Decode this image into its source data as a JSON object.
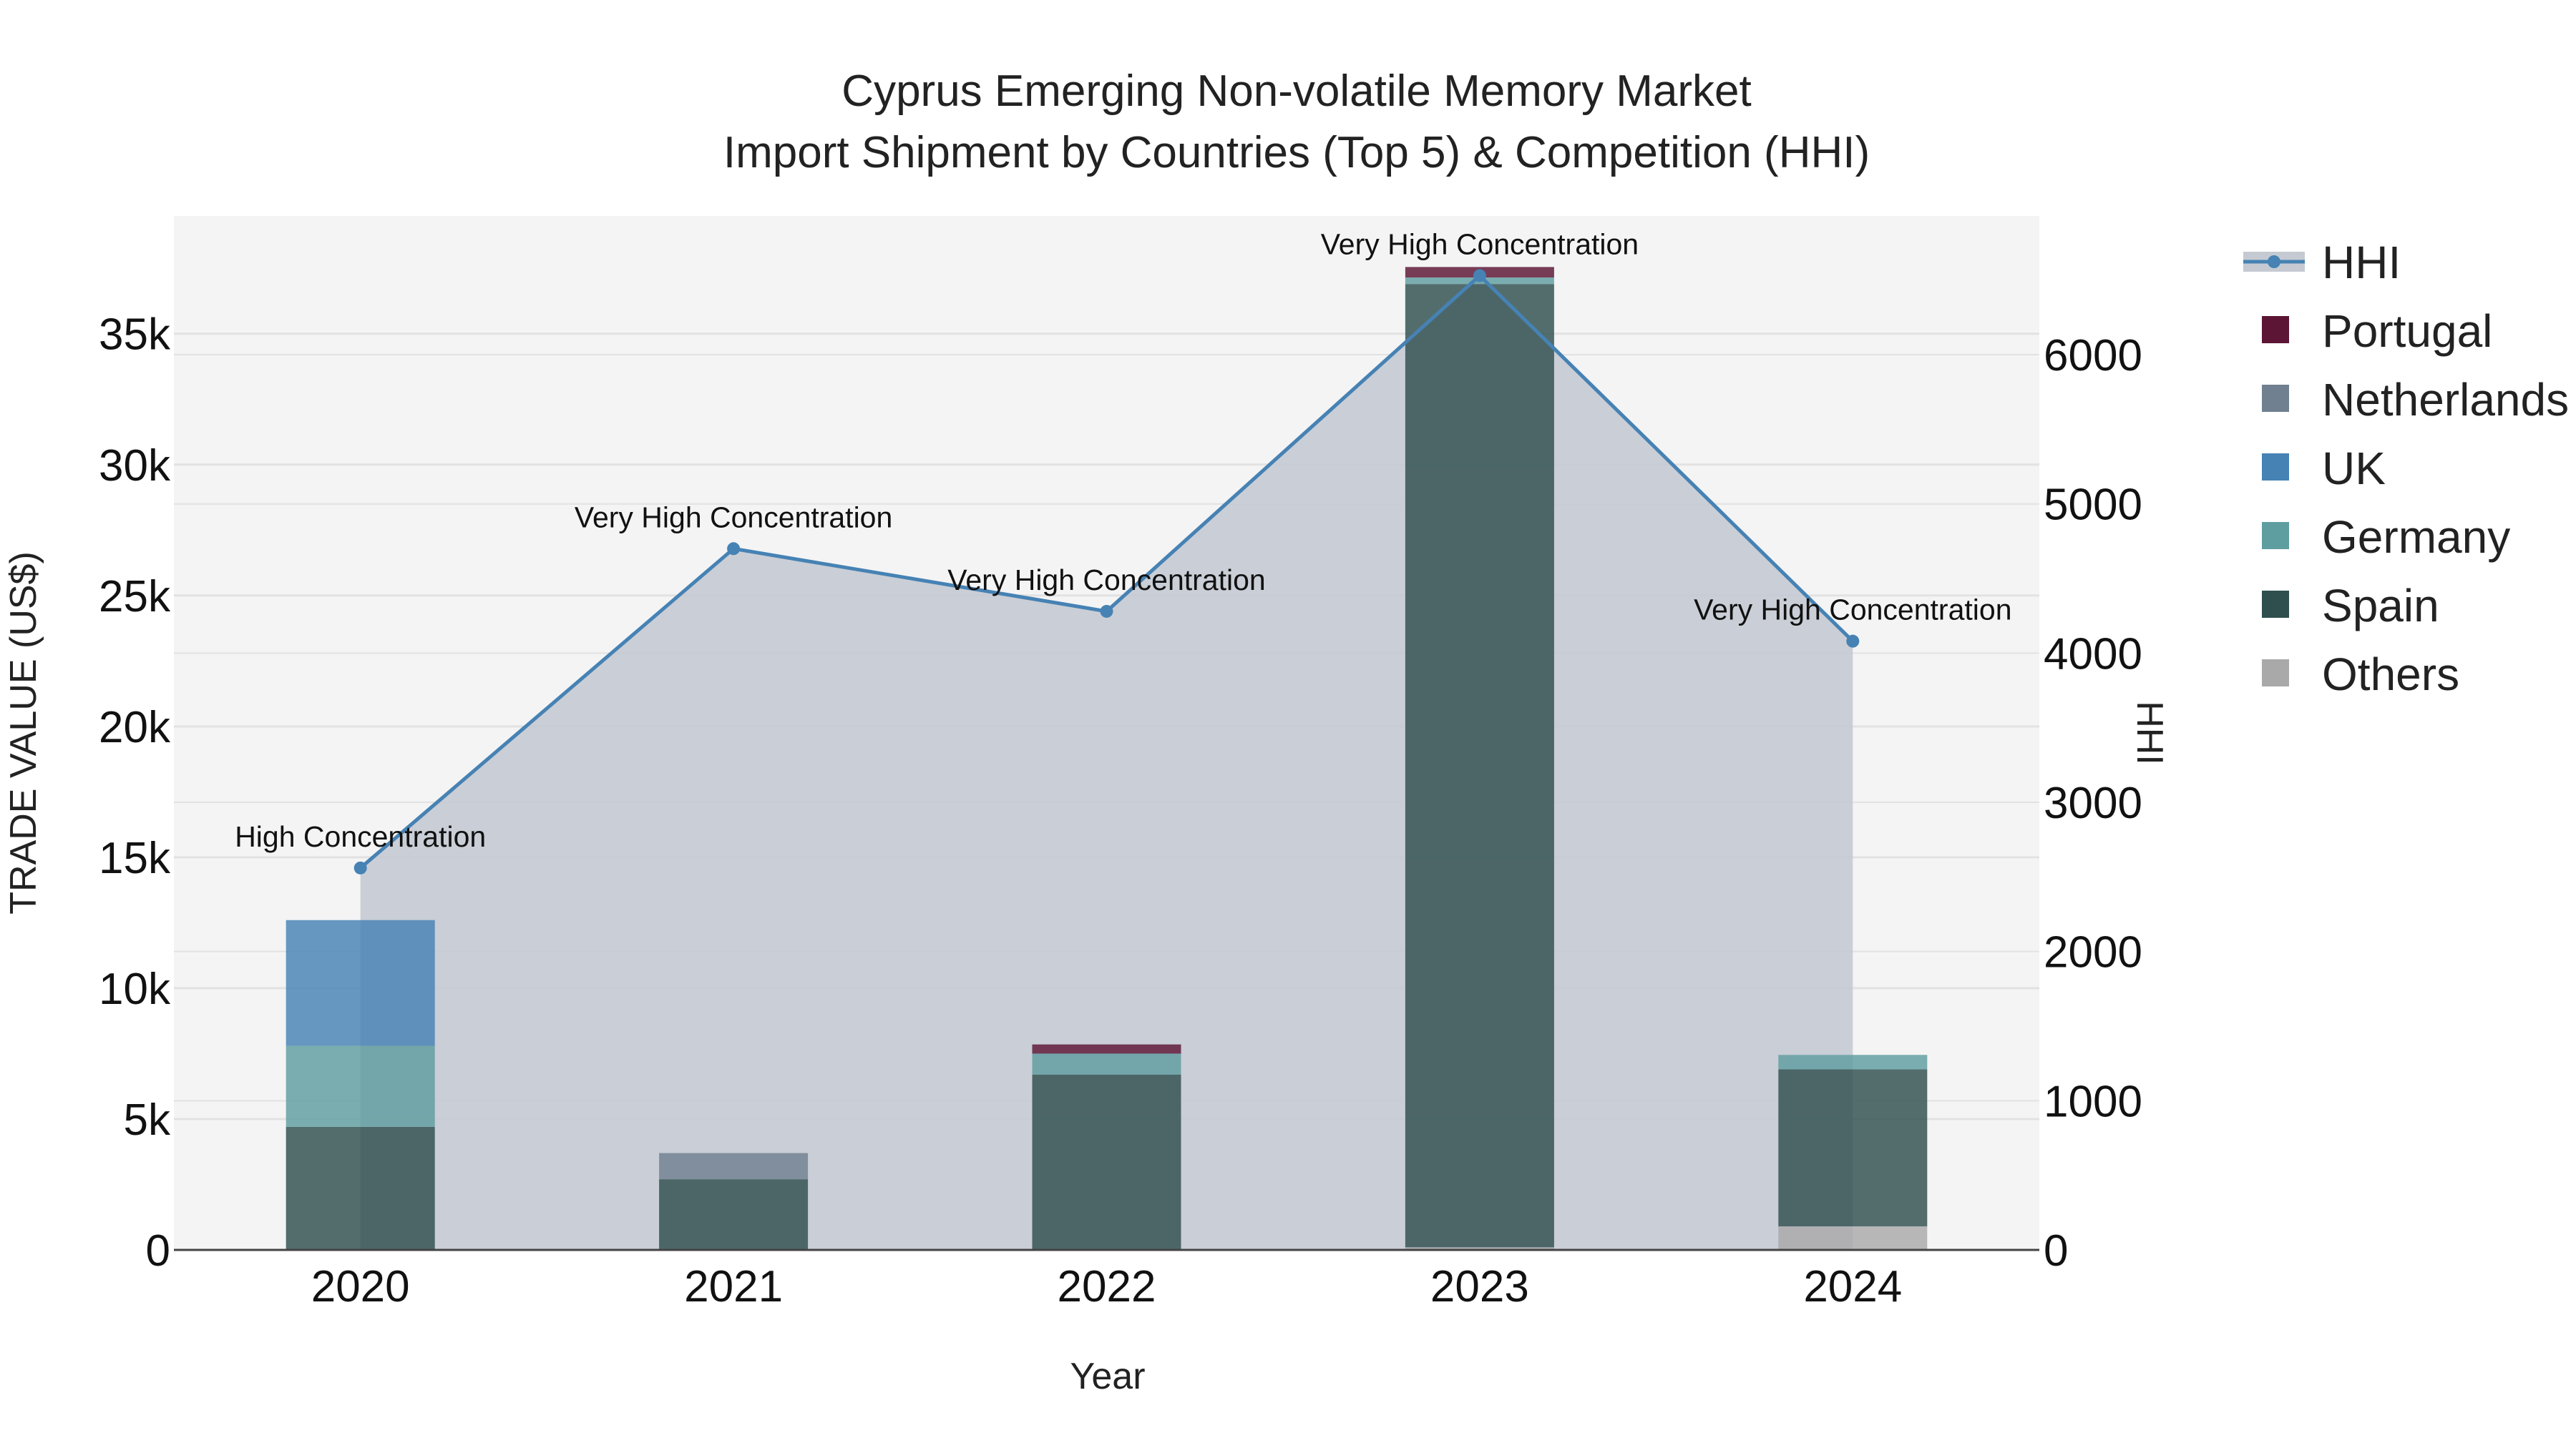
{
  "chart_data": {
    "type": "bar",
    "title_line1": "Cyprus Emerging Non-volatile Memory Market",
    "title_line2": "Import Shipment by Countries (Top 5) & Competition (HHI)",
    "xlabel": "Year",
    "ylabel": "TRADE VALUE (US$)",
    "y2label": "HHI",
    "categories": [
      "2020",
      "2021",
      "2022",
      "2023",
      "2024"
    ],
    "ylim": [
      0,
      39500
    ],
    "y2lim": [
      0,
      6930
    ],
    "yticks": [
      0,
      5000,
      10000,
      15000,
      20000,
      25000,
      30000,
      35000
    ],
    "yticklabels": [
      "0",
      "5k",
      "10k",
      "15k",
      "20k",
      "25k",
      "30k",
      "35k"
    ],
    "y2ticks": [
      0,
      1000,
      2000,
      3000,
      4000,
      5000,
      6000
    ],
    "y2ticklabels": [
      "0",
      "1000",
      "2000",
      "3000",
      "4000",
      "5000",
      "6000"
    ],
    "series": [
      {
        "name": "Others",
        "color": "#a9a9a9",
        "values": [
          0,
          0,
          0,
          100,
          900
        ]
      },
      {
        "name": "Spain",
        "color": "#2f4f4f",
        "values": [
          4700,
          2700,
          6700,
          36800,
          6000
        ]
      },
      {
        "name": "Germany",
        "color": "#5f9ea0",
        "values": [
          3100,
          0,
          800,
          250,
          550
        ]
      },
      {
        "name": "UK",
        "color": "#4682b4",
        "values": [
          4800,
          0,
          0,
          0,
          0
        ]
      },
      {
        "name": "Netherlands",
        "color": "#708090",
        "values": [
          0,
          1000,
          0,
          0,
          0
        ]
      },
      {
        "name": "Portugal",
        "color": "#5c1535",
        "values": [
          0,
          0,
          350,
          400,
          0
        ]
      }
    ],
    "hhi": {
      "name": "HHI",
      "color": "#4682b4",
      "values": [
        2560,
        4700,
        4280,
        6530,
        4080
      ],
      "labels": [
        "High Concentration",
        "Very High Concentration",
        "Very High Concentration",
        "Very High Concentration",
        "Very High Concentration"
      ]
    },
    "legend": [
      "HHI",
      "Portugal",
      "Netherlands",
      "UK",
      "Germany",
      "Spain",
      "Others"
    ]
  }
}
